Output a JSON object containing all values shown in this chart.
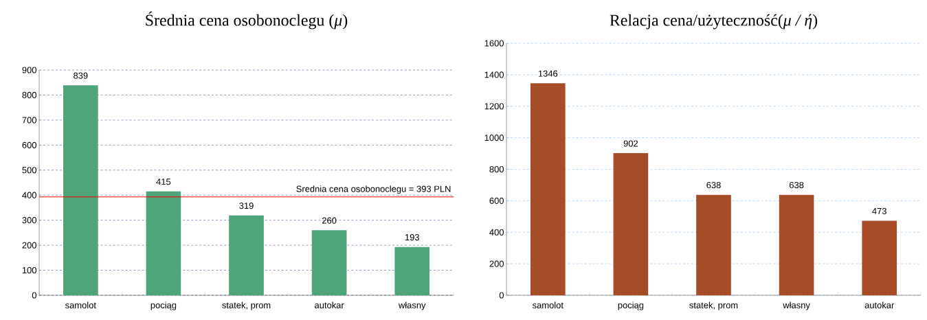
{
  "chart_data": [
    {
      "type": "bar",
      "title": "Średnia cena osobonoclegu (*μ*)",
      "categories": [
        "samolot",
        "pociąg",
        "statek, prom",
        "autokar",
        "własny"
      ],
      "values": [
        839,
        415,
        319,
        260,
        193
      ],
      "color": "#4fa57a",
      "ylim": [
        0,
        900
      ],
      "yticks": [
        0,
        100,
        200,
        300,
        400,
        500,
        600,
        700,
        800,
        900
      ],
      "grid": "y",
      "data_labels": true,
      "ref_lines": [
        {
          "axis": "y",
          "value": 393,
          "label": "Srednia cena osobonoclegu = 393 PLN",
          "color": "#ff0000"
        }
      ]
    },
    {
      "type": "bar",
      "title": "Relacja cena/użyteczność(*μ / ή*)",
      "categories": [
        "samolot",
        "pociąg",
        "statek, prom",
        "własny",
        "autokar"
      ],
      "values": [
        1346,
        902,
        638,
        638,
        473
      ],
      "color": "#a64d27",
      "ylim": [
        0,
        1600
      ],
      "yticks": [
        0,
        200,
        400,
        600,
        800,
        1000,
        1200,
        1400,
        1600
      ],
      "grid": "y",
      "data_labels": true
    }
  ]
}
